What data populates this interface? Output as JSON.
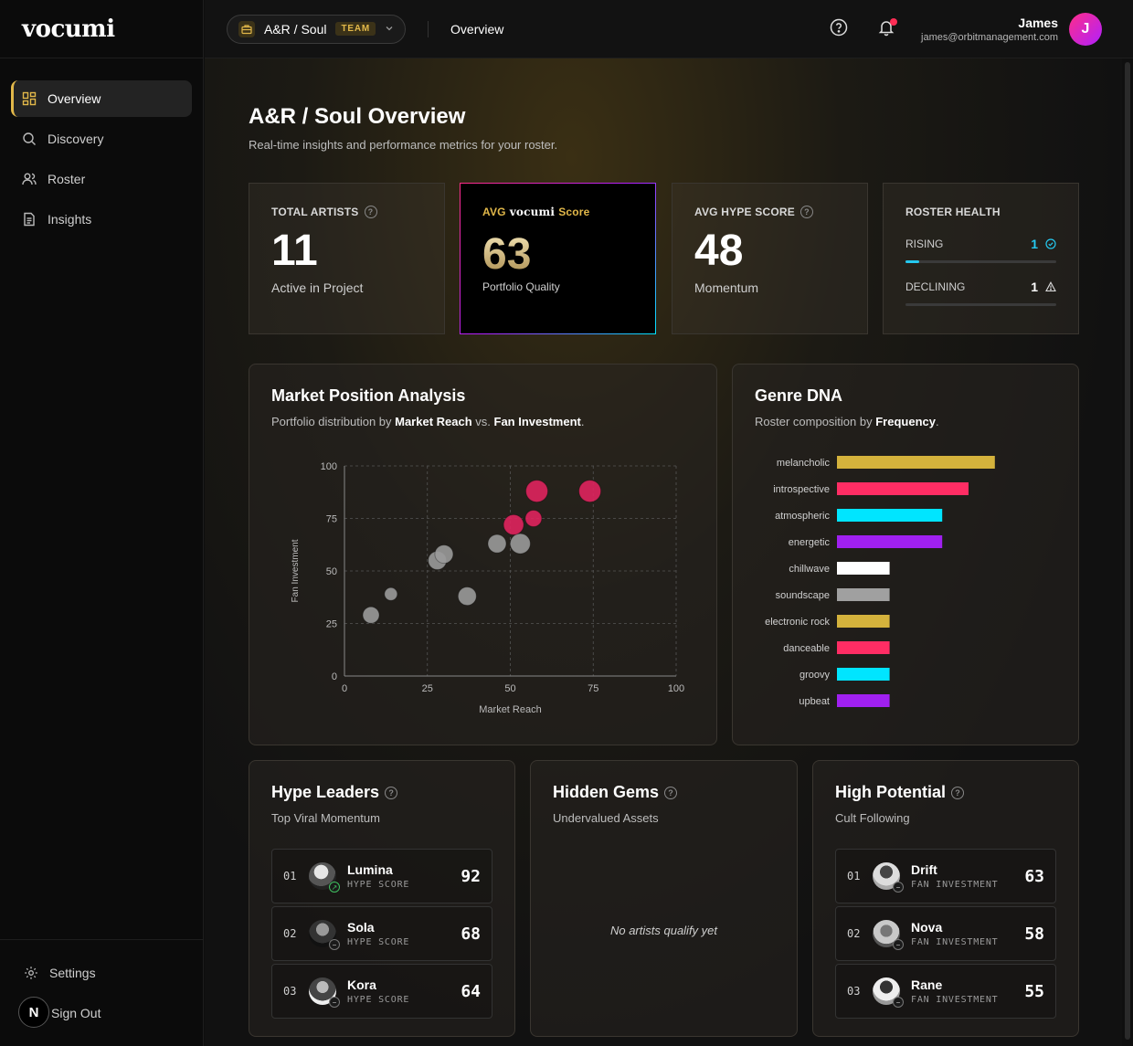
{
  "brand": "vocumi",
  "sidebar": {
    "items": [
      {
        "label": "Overview",
        "icon": "grid-icon"
      },
      {
        "label": "Discovery",
        "icon": "search-icon"
      },
      {
        "label": "Roster",
        "icon": "users-icon"
      },
      {
        "label": "Insights",
        "icon": "document-icon"
      }
    ],
    "settings_label": "Settings",
    "signout_label": "Sign Out",
    "badge_letter": "N"
  },
  "topbar": {
    "team_name": "A&R / Soul",
    "team_badge": "TEAM",
    "title": "Overview",
    "user_name": "James",
    "user_email": "james@orbitmanagement.com",
    "avatar_letter": "J"
  },
  "page": {
    "title": "A&R / Soul Overview",
    "subtitle": "Real-time insights and performance metrics for your roster."
  },
  "stats": {
    "total_artists": {
      "label": "TOTAL ARTISTS",
      "value": "11",
      "foot": "Active in Project"
    },
    "avg_score": {
      "label_a": "AVG",
      "label_b": "vocumi",
      "label_c": "Score",
      "value": "63",
      "foot": "Portfolio Quality"
    },
    "avg_hype": {
      "label": "AVG HYPE SCORE",
      "value": "48",
      "foot": "Momentum"
    },
    "health": {
      "label": "ROSTER HEALTH",
      "rising_label": "RISING",
      "rising": "1",
      "rising_fraction": 0.09,
      "declining_label": "DECLINING",
      "declining": "1"
    }
  },
  "market": {
    "title": "Market Position Analysis",
    "sub_a": "Portfolio distribution by ",
    "sub_b": "Market Reach",
    "sub_c": " vs. ",
    "sub_d": "Fan Investment",
    "sub_e": "."
  },
  "genre": {
    "title": "Genre DNA",
    "sub_a": "Roster composition by ",
    "sub_b": "Frequency",
    "sub_c": "."
  },
  "chart_data": [
    {
      "type": "scatter",
      "xlabel": "Market Reach",
      "ylabel": "Fan Investment",
      "xlim": [
        0,
        100
      ],
      "ylim": [
        0,
        100
      ],
      "xticks": [
        0,
        25,
        50,
        75,
        100
      ],
      "yticks": [
        0,
        25,
        50,
        75,
        100
      ],
      "grid": true,
      "points": [
        {
          "x": 8,
          "y": 29,
          "r": 9,
          "color": "#9a9a9a"
        },
        {
          "x": 14,
          "y": 39,
          "r": 7,
          "color": "#9a9a9a"
        },
        {
          "x": 28,
          "y": 55,
          "r": 10,
          "color": "#9a9a9a"
        },
        {
          "x": 30,
          "y": 58,
          "r": 10,
          "color": "#9a9a9a"
        },
        {
          "x": 37,
          "y": 38,
          "r": 10,
          "color": "#9a9a9a"
        },
        {
          "x": 46,
          "y": 63,
          "r": 10,
          "color": "#9a9a9a"
        },
        {
          "x": 53,
          "y": 63,
          "r": 11,
          "color": "#9a9a9a"
        },
        {
          "x": 51,
          "y": 72,
          "r": 11,
          "color": "#e0245e"
        },
        {
          "x": 57,
          "y": 75,
          "r": 9,
          "color": "#e0245e"
        },
        {
          "x": 58,
          "y": 88,
          "r": 12,
          "color": "#e0245e"
        },
        {
          "x": 74,
          "y": 88,
          "r": 12,
          "color": "#e0245e"
        }
      ]
    },
    {
      "type": "bar",
      "orientation": "horizontal",
      "categories": [
        "melancholic",
        "introspective",
        "atmospheric",
        "energetic",
        "chillwave",
        "soundscape",
        "electronic rock",
        "danceable",
        "groovy",
        "upbeat"
      ],
      "values": [
        6,
        5,
        4,
        4,
        2,
        2,
        2,
        2,
        2,
        2
      ],
      "colors": [
        "#d4b23c",
        "#ff2d64",
        "#00e5ff",
        "#a020f0",
        "#ffffff",
        "#a0a0a0",
        "#d4b23c",
        "#ff2d64",
        "#00e5ff",
        "#a020f0"
      ],
      "xlim": [
        0,
        10
      ]
    }
  ],
  "hype": {
    "title": "Hype Leaders",
    "sub": "Top Viral Momentum",
    "items": [
      {
        "rank": "01",
        "name": "Lumina",
        "metric": "HYPE SCORE",
        "score": "92"
      },
      {
        "rank": "02",
        "name": "Sola",
        "metric": "HYPE SCORE",
        "score": "68"
      },
      {
        "rank": "03",
        "name": "Kora",
        "metric": "HYPE SCORE",
        "score": "64"
      }
    ]
  },
  "gems": {
    "title": "Hidden Gems",
    "sub": "Undervalued Assets",
    "empty": "No artists qualify yet"
  },
  "potential": {
    "title": "High Potential",
    "sub": "Cult Following",
    "items": [
      {
        "rank": "01",
        "name": "Drift",
        "metric": "FAN INVESTMENT",
        "score": "63"
      },
      {
        "rank": "02",
        "name": "Nova",
        "metric": "FAN INVESTMENT",
        "score": "58"
      },
      {
        "rank": "03",
        "name": "Rane",
        "metric": "FAN INVESTMENT",
        "score": "55"
      }
    ]
  }
}
